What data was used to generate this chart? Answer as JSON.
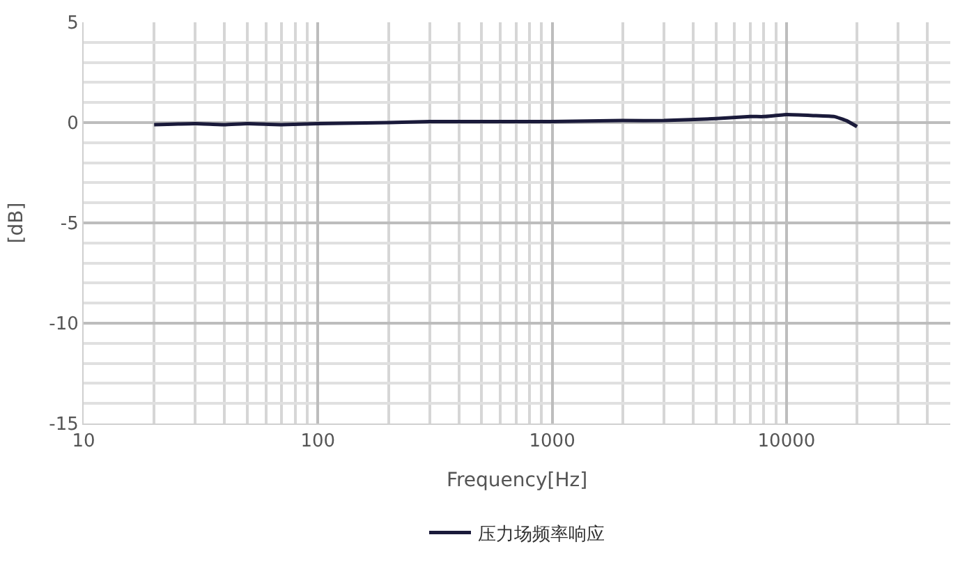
{
  "chart_data": {
    "type": "line",
    "xlabel": "Frequency[Hz]",
    "ylabel": "[dB]",
    "x": [
      20,
      30,
      40,
      50,
      70,
      100,
      200,
      300,
      500,
      1000,
      2000,
      3000,
      5000,
      7000,
      8000,
      10000,
      13000,
      16000,
      18000,
      20000
    ],
    "series": [
      {
        "name": "压力场频率响应",
        "color": "#1a1a3a",
        "values": [
          -0.1,
          -0.05,
          -0.1,
          -0.05,
          -0.1,
          -0.05,
          0,
          0.05,
          0.05,
          0.05,
          0.1,
          0.1,
          0.2,
          0.3,
          0.3,
          0.4,
          0.35,
          0.3,
          0.1,
          -0.2
        ]
      }
    ],
    "log": "x",
    "xlim": [
      10,
      50000
    ],
    "xticks": [
      10,
      100,
      1000,
      10000
    ],
    "ylim": [
      -15,
      5
    ],
    "yticks": [
      -15,
      -10,
      -5,
      0,
      5
    ],
    "grid": true,
    "legend": "bottom",
    "marker": "none",
    "line_style": "solid"
  }
}
